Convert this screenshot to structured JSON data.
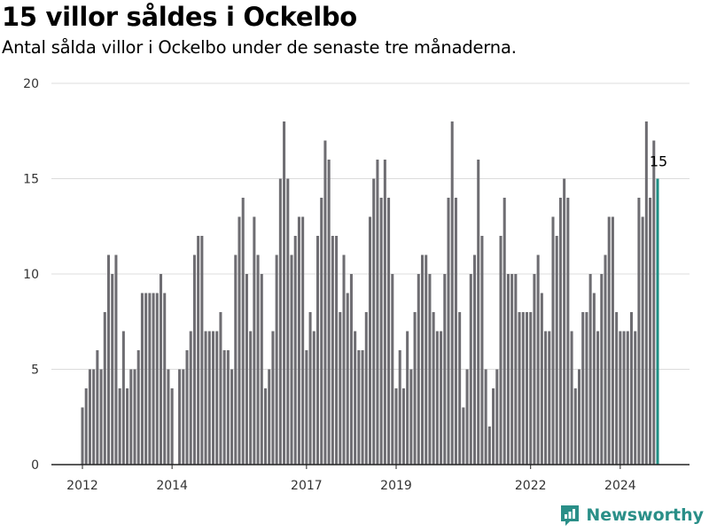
{
  "title": "15 villor såldes i Ockelbo",
  "subtitle": "Antal sålda villor i Ockelbo under de senaste tre månaderna.",
  "brand": {
    "name": "Newsworthy",
    "color": "#2a8f88"
  },
  "chart_data": {
    "type": "bar",
    "title": "15 villor såldes i Ockelbo",
    "subtitle": "Antal sålda villor i Ockelbo under de senaste tre månaderna.",
    "x_start": "2012-01",
    "x_end": "2024-10",
    "ylim": [
      0,
      20
    ],
    "yticks": [
      0,
      5,
      10,
      15,
      20
    ],
    "xticks": [
      "2012",
      "2014",
      "2017",
      "2019",
      "2022",
      "2024"
    ],
    "grid": true,
    "bar_color": "#6e6d72",
    "highlight_color": "#1f8f84",
    "annotation": {
      "label": "15",
      "value": 15
    },
    "values": [
      3,
      4,
      5,
      5,
      6,
      5,
      8,
      11,
      10,
      11,
      4,
      7,
      4,
      5,
      5,
      6,
      9,
      9,
      9,
      9,
      9,
      10,
      9,
      5,
      4,
      0,
      5,
      5,
      6,
      7,
      11,
      12,
      12,
      7,
      7,
      7,
      7,
      8,
      6,
      6,
      5,
      11,
      13,
      14,
      10,
      7,
      13,
      11,
      10,
      4,
      5,
      7,
      11,
      15,
      18,
      15,
      11,
      12,
      13,
      13,
      6,
      8,
      7,
      12,
      14,
      17,
      16,
      12,
      12,
      8,
      11,
      9,
      10,
      7,
      6,
      6,
      8,
      13,
      15,
      16,
      14,
      16,
      14,
      10,
      4,
      6,
      4,
      7,
      5,
      8,
      10,
      11,
      11,
      10,
      8,
      7,
      7,
      10,
      14,
      18,
      14,
      8,
      3,
      5,
      10,
      11,
      16,
      12,
      5,
      2,
      4,
      5,
      12,
      14,
      10,
      10,
      10,
      8,
      8,
      8,
      8,
      10,
      11,
      9,
      7,
      7,
      13,
      12,
      14,
      15,
      14,
      7,
      4,
      5,
      8,
      8,
      10,
      9,
      7,
      10,
      11,
      13,
      13,
      8,
      7,
      7,
      7,
      8,
      7,
      14,
      13,
      18,
      14,
      17,
      15
    ]
  }
}
